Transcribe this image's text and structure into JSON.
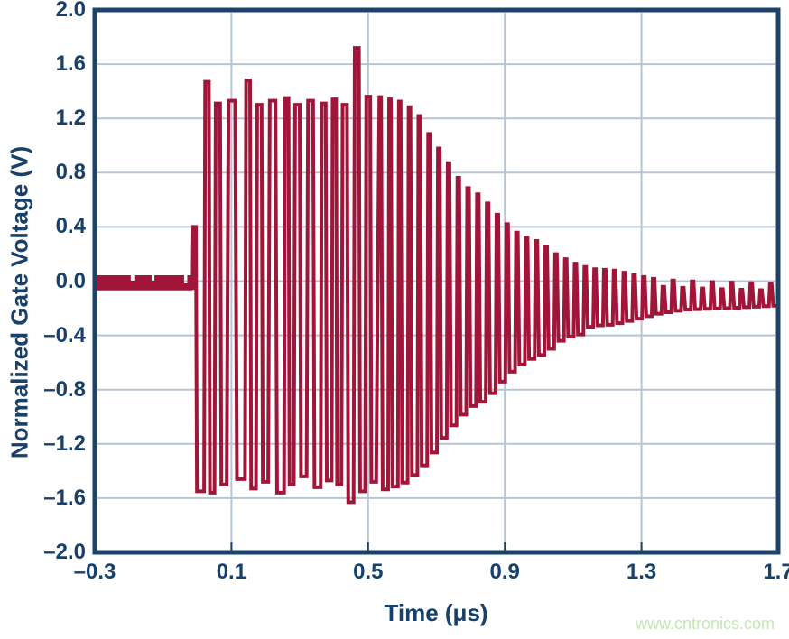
{
  "watermark": {
    "text": "www.cntronics.com",
    "color": "#c5e6b2"
  },
  "chart_data": {
    "type": "line",
    "title": "",
    "xlabel": "Time (μs)",
    "ylabel": "Normalized Gate Voltage (V)",
    "xlim": [
      -0.3,
      1.7
    ],
    "ylim": [
      -2.0,
      2.0
    ],
    "xticks": [
      -0.3,
      0.1,
      0.5,
      0.9,
      1.3,
      1.7
    ],
    "xtick_labels": [
      "–0.3",
      "0.1",
      "0.5",
      "0.9",
      "1.3",
      "1.7"
    ],
    "yticks": [
      2.0,
      1.6,
      1.2,
      0.8,
      0.4,
      0.0,
      -0.4,
      -0.8,
      -1.2,
      -1.6,
      -2.0
    ],
    "ytick_labels": [
      "2.0",
      "1.6",
      "1.2",
      "0.8",
      "0.4",
      "0.0",
      "–0.4",
      "–0.8",
      "–1.2",
      "–1.6",
      "–2.0"
    ],
    "grid": true,
    "legend": "none",
    "colors": {
      "trace": "#a11638",
      "axis_border": "#1b4269",
      "gridline": "#b7c4d4",
      "tick_label": "#17406a"
    },
    "description": "Single burst of high-frequency gate-drive oscillation: flat baseline near 0 V, hard-switched burst between about +1.3 and -1.5 from t=0 to t=0.53 us (spikes to +1.72 and -1.63 near t=0.46), then exponential ring-down at ~35 cycles/us settling to a narrow band around -0.1 V by t=1.7 us.",
    "waveform": {
      "baseline": {
        "t_start": -0.3,
        "t_end": -0.016,
        "top": 0.04,
        "bottom": -0.065,
        "notches": [
          {
            "t": -0.196,
            "w": 0.013,
            "v": 0.0
          },
          {
            "t": -0.135,
            "w": 0.011,
            "v": 0.0
          },
          {
            "t": -0.04,
            "w": 0.012,
            "v": -0.02
          }
        ]
      },
      "prepulse": {
        "t_rise": -0.014,
        "t_fall": -0.004,
        "level": 0.4
      },
      "first_bottom": {
        "level": -1.55,
        "t_end": 0.02
      },
      "burst": {
        "t_start": 0.02,
        "cycles_per_us": 28,
        "width_factors": [
          0.85,
          1.0,
          1.5,
          0.9,
          1.0,
          1.3,
          0.8,
          1.05,
          1.15,
          0.9,
          0.8,
          1.0,
          0.95,
          0.9
        ],
        "tops": [
          1.47,
          1.31,
          1.33,
          1.48,
          1.3,
          1.33,
          1.35,
          1.3,
          1.33,
          1.31,
          1.34,
          1.3,
          1.72,
          1.36
        ],
        "bottoms": [
          -1.56,
          -1.5,
          -1.46,
          -1.53,
          -1.48,
          -1.56,
          -1.5,
          -1.44,
          -1.52,
          -1.47,
          -1.5,
          -1.63,
          -1.55,
          -1.48
        ]
      },
      "ringdown": {
        "t_start": 0.53,
        "t_end": 1.7,
        "cycles_per_us": 35,
        "upper_envelope": [
          [
            0.53,
            1.36
          ],
          [
            0.6,
            1.32
          ],
          [
            0.646,
            1.24
          ],
          [
            0.664,
            1.14
          ],
          [
            0.72,
            0.93
          ],
          [
            0.778,
            0.71
          ],
          [
            0.834,
            0.62
          ],
          [
            0.889,
            0.46
          ],
          [
            0.944,
            0.34
          ],
          [
            1.0,
            0.29
          ],
          [
            1.055,
            0.19
          ],
          [
            1.106,
            0.13
          ],
          [
            1.153,
            0.09
          ],
          [
            1.219,
            0.08
          ],
          [
            1.288,
            0.04
          ],
          [
            1.351,
            0.01
          ],
          [
            1.43,
            0.0
          ],
          [
            1.55,
            -0.01
          ],
          [
            1.7,
            -0.02
          ]
        ],
        "lower_envelope": [
          [
            0.53,
            -1.55
          ],
          [
            0.6,
            -1.5
          ],
          [
            0.646,
            -1.41
          ],
          [
            0.678,
            -1.32
          ],
          [
            0.736,
            -1.1
          ],
          [
            0.77,
            -1.01
          ],
          [
            0.797,
            -0.93
          ],
          [
            0.831,
            -0.9
          ],
          [
            0.863,
            -0.83
          ],
          [
            0.91,
            -0.69
          ],
          [
            0.963,
            -0.59
          ],
          [
            1.021,
            -0.53
          ],
          [
            1.074,
            -0.42
          ],
          [
            1.127,
            -0.39
          ],
          [
            1.153,
            -0.33
          ],
          [
            1.219,
            -0.32
          ],
          [
            1.288,
            -0.28
          ],
          [
            1.351,
            -0.24
          ],
          [
            1.43,
            -0.21
          ],
          [
            1.55,
            -0.2
          ],
          [
            1.7,
            -0.18
          ]
        ],
        "tail_alternation": {
          "after_t": 1.35,
          "delta": 0.05
        }
      }
    }
  }
}
